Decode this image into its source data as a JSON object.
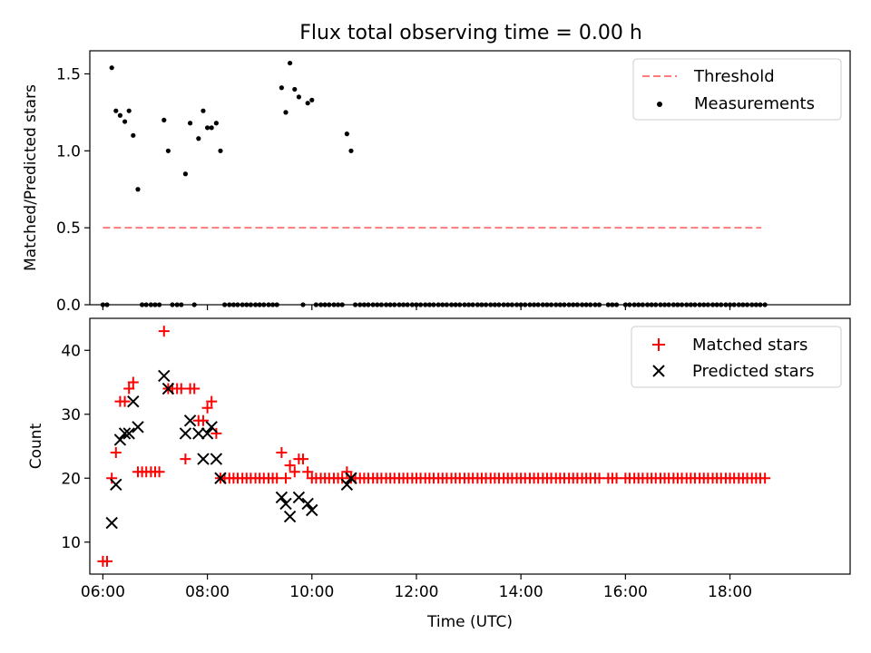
{
  "figure": {
    "title": "Flux total observing time = 0.00 h"
  },
  "chart_data": [
    {
      "type": "scatter",
      "xlabel": "",
      "ylabel": "Matched/Predicted stars",
      "xlim": [
        5.75,
        20.3
      ],
      "ylim": [
        0,
        1.65
      ],
      "yticks": [
        0.0,
        0.5,
        1.0,
        1.5
      ],
      "ytick_labels": [
        "0.0",
        "0.5",
        "1.0",
        "1.5"
      ],
      "xticks": [
        6,
        8,
        10,
        12,
        14,
        16,
        18
      ],
      "legend": {
        "placement": "top-right",
        "entries": [
          "Threshold",
          "Measurements"
        ]
      },
      "threshold": {
        "name": "Threshold",
        "x": [
          6.0,
          18.6
        ],
        "y": 0.5,
        "color": "#ff7a7a",
        "style": "dashed"
      },
      "series": [
        {
          "name": "Measurements",
          "color": "#000000",
          "marker": "dot",
          "x": [
            6.0,
            6.08,
            6.17,
            6.25,
            6.33,
            6.42,
            6.5,
            6.58,
            6.67,
            6.75,
            6.83,
            6.92,
            7.0,
            7.08,
            7.17,
            7.25,
            7.33,
            7.42,
            7.5,
            7.58,
            7.67,
            7.75,
            7.83,
            7.92,
            8.0,
            8.08,
            8.17,
            8.25,
            8.33,
            8.42,
            8.5,
            8.58,
            8.67,
            8.75,
            8.83,
            8.92,
            9.0,
            9.08,
            9.17,
            9.25,
            9.33,
            9.42,
            9.5,
            9.58,
            9.67,
            9.75,
            9.83,
            9.92,
            10.0,
            10.08,
            10.17,
            10.25,
            10.33,
            10.42,
            10.5,
            10.58,
            10.67,
            10.75,
            10.83,
            10.92,
            11.0,
            11.08,
            11.17,
            11.25,
            11.33,
            11.42,
            11.5,
            11.58,
            11.67,
            11.75,
            11.83,
            11.92,
            12.0,
            12.08,
            12.17,
            12.25,
            12.33,
            12.42,
            12.5,
            12.58,
            12.67,
            12.75,
            12.83,
            12.92,
            13.0,
            13.08,
            13.17,
            13.25,
            13.33,
            13.42,
            13.5,
            13.58,
            13.67,
            13.75,
            13.83,
            13.92,
            14.0,
            14.08,
            14.17,
            14.25,
            14.33,
            14.42,
            14.5,
            14.58,
            14.67,
            14.75,
            14.83,
            14.92,
            15.0,
            15.08,
            15.17,
            15.25,
            15.33,
            15.42,
            15.5,
            15.67,
            15.75,
            15.83,
            16.0,
            16.08,
            16.17,
            16.25,
            16.33,
            16.42,
            16.5,
            16.58,
            16.67,
            16.75,
            16.83,
            16.92,
            17.0,
            17.08,
            17.17,
            17.25,
            17.33,
            17.42,
            17.5,
            17.58,
            17.67,
            17.75,
            17.83,
            17.92,
            18.0,
            18.08,
            18.17,
            18.25,
            18.33,
            18.42,
            18.5,
            18.58,
            18.67
          ],
          "y": [
            0.0,
            0.0,
            1.54,
            1.26,
            1.23,
            1.19,
            1.26,
            1.1,
            0.75,
            0.0,
            0.0,
            0.0,
            0.0,
            0.0,
            1.2,
            1.0,
            0.0,
            0.0,
            0.0,
            0.85,
            1.18,
            0.0,
            1.08,
            1.26,
            1.15,
            1.15,
            1.18,
            1.0,
            0.0,
            0.0,
            0.0,
            0.0,
            0.0,
            0.0,
            0.0,
            0.0,
            0.0,
            0.0,
            0.0,
            0.0,
            0.0,
            1.41,
            1.25,
            1.57,
            1.4,
            1.35,
            0.0,
            1.31,
            1.33,
            0.0,
            0.0,
            0.0,
            0.0,
            0.0,
            0.0,
            0.0,
            1.11,
            1.0,
            0.0,
            0.0,
            0.0,
            0.0,
            0.0,
            0.0,
            0.0,
            0.0,
            0.0,
            0.0,
            0.0,
            0.0,
            0.0,
            0.0,
            0.0,
            0.0,
            0.0,
            0.0,
            0.0,
            0.0,
            0.0,
            0.0,
            0.0,
            0.0,
            0.0,
            0.0,
            0.0,
            0.0,
            0.0,
            0.0,
            0.0,
            0.0,
            0.0,
            0.0,
            0.0,
            0.0,
            0.0,
            0.0,
            0.0,
            0.0,
            0.0,
            0.0,
            0.0,
            0.0,
            0.0,
            0.0,
            0.0,
            0.0,
            0.0,
            0.0,
            0.0,
            0.0,
            0.0,
            0.0,
            0.0,
            0.0,
            0.0,
            0.0,
            0.0,
            0.0,
            0.0,
            0.0,
            0.0,
            0.0,
            0.0,
            0.0,
            0.0,
            0.0,
            0.0,
            0.0,
            0.0,
            0.0,
            0.0,
            0.0,
            0.0,
            0.0,
            0.0,
            0.0,
            0.0,
            0.0,
            0.0,
            0.0,
            0.0,
            0.0,
            0.0,
            0.0,
            0.0,
            0.0,
            0.0,
            0.0,
            0.0,
            0.0,
            0.0
          ]
        }
      ]
    },
    {
      "type": "scatter",
      "xlabel": "Time (UTC)",
      "ylabel": "Count",
      "xlim": [
        5.75,
        20.3
      ],
      "ylim": [
        5,
        45
      ],
      "yticks": [
        10,
        20,
        30,
        40
      ],
      "ytick_labels": [
        "10",
        "20",
        "30",
        "40"
      ],
      "xticks": [
        6,
        8,
        10,
        12,
        14,
        16,
        18
      ],
      "xtick_labels": [
        "06:00",
        "08:00",
        "10:00",
        "12:00",
        "14:00",
        "16:00",
        "18:00"
      ],
      "legend": {
        "placement": "top-right",
        "entries": [
          "Matched stars",
          "Predicted stars"
        ]
      },
      "series": [
        {
          "name": "Matched stars",
          "color": "#ff0000",
          "marker": "plus",
          "x": [
            6.0,
            6.08,
            6.17,
            6.25,
            6.33,
            6.42,
            6.5,
            6.58,
            6.67,
            6.75,
            6.83,
            6.92,
            7.0,
            7.08,
            7.17,
            7.25,
            7.33,
            7.42,
            7.5,
            7.58,
            7.67,
            7.75,
            7.83,
            7.92,
            8.0,
            8.08,
            8.17,
            8.25,
            8.33,
            8.42,
            8.5,
            8.58,
            8.67,
            8.75,
            8.83,
            8.92,
            9.0,
            9.08,
            9.17,
            9.25,
            9.33,
            9.42,
            9.5,
            9.58,
            9.67,
            9.75,
            9.83,
            9.92,
            10.0,
            10.08,
            10.17,
            10.25,
            10.33,
            10.42,
            10.5,
            10.58,
            10.67,
            10.75,
            10.83,
            10.92,
            11.0,
            11.08,
            11.17,
            11.25,
            11.33,
            11.42,
            11.5,
            11.58,
            11.67,
            11.75,
            11.83,
            11.92,
            12.0,
            12.08,
            12.17,
            12.25,
            12.33,
            12.42,
            12.5,
            12.58,
            12.67,
            12.75,
            12.83,
            12.92,
            13.0,
            13.08,
            13.17,
            13.25,
            13.33,
            13.42,
            13.5,
            13.58,
            13.67,
            13.75,
            13.83,
            13.92,
            14.0,
            14.08,
            14.17,
            14.25,
            14.33,
            14.42,
            14.5,
            14.58,
            14.67,
            14.75,
            14.83,
            14.92,
            15.0,
            15.08,
            15.17,
            15.25,
            15.33,
            15.42,
            15.5,
            15.67,
            15.75,
            15.83,
            16.0,
            16.08,
            16.17,
            16.25,
            16.33,
            16.42,
            16.5,
            16.58,
            16.67,
            16.75,
            16.83,
            16.92,
            17.0,
            17.08,
            17.17,
            17.25,
            17.33,
            17.42,
            17.5,
            17.58,
            17.67,
            17.75,
            17.83,
            17.92,
            18.0,
            18.08,
            18.17,
            18.25,
            18.33,
            18.42,
            18.5,
            18.58,
            18.67
          ],
          "y": [
            7,
            7,
            20,
            24,
            32,
            32,
            34,
            35,
            21,
            21,
            21,
            21,
            21,
            21,
            43,
            34,
            34,
            34,
            34,
            23,
            34,
            34,
            29,
            29,
            31,
            32,
            27,
            20,
            20,
            20,
            20,
            20,
            20,
            20,
            20,
            20,
            20,
            20,
            20,
            20,
            20,
            24,
            20,
            22,
            21,
            23,
            23,
            21,
            20,
            20,
            20,
            20,
            20,
            20,
            20,
            20,
            21,
            20,
            20,
            20,
            20,
            20,
            20,
            20,
            20,
            20,
            20,
            20,
            20,
            20,
            20,
            20,
            20,
            20,
            20,
            20,
            20,
            20,
            20,
            20,
            20,
            20,
            20,
            20,
            20,
            20,
            20,
            20,
            20,
            20,
            20,
            20,
            20,
            20,
            20,
            20,
            20,
            20,
            20,
            20,
            20,
            20,
            20,
            20,
            20,
            20,
            20,
            20,
            20,
            20,
            20,
            20,
            20,
            20,
            20,
            20,
            20,
            20,
            20,
            20,
            20,
            20,
            20,
            20,
            20,
            20,
            20,
            20,
            20,
            20,
            20,
            20,
            20,
            20,
            20,
            20,
            20,
            20,
            20,
            20,
            20,
            20,
            20,
            20,
            20,
            20,
            20,
            20,
            20,
            20,
            20
          ]
        },
        {
          "name": "Predicted stars",
          "color": "#000000",
          "marker": "x",
          "x": [
            6.17,
            6.25,
            6.33,
            6.42,
            6.5,
            6.58,
            6.67,
            7.17,
            7.25,
            7.58,
            7.67,
            7.83,
            7.92,
            8.0,
            8.08,
            8.17,
            8.25,
            9.42,
            9.5,
            9.58,
            9.75,
            9.92,
            10.0,
            10.67,
            10.75
          ],
          "y": [
            13,
            19,
            26,
            27,
            27,
            32,
            28,
            36,
            34,
            27,
            29,
            27,
            23,
            27,
            28,
            23,
            20,
            17,
            16,
            14,
            17,
            16,
            15,
            19,
            20
          ]
        }
      ]
    }
  ]
}
